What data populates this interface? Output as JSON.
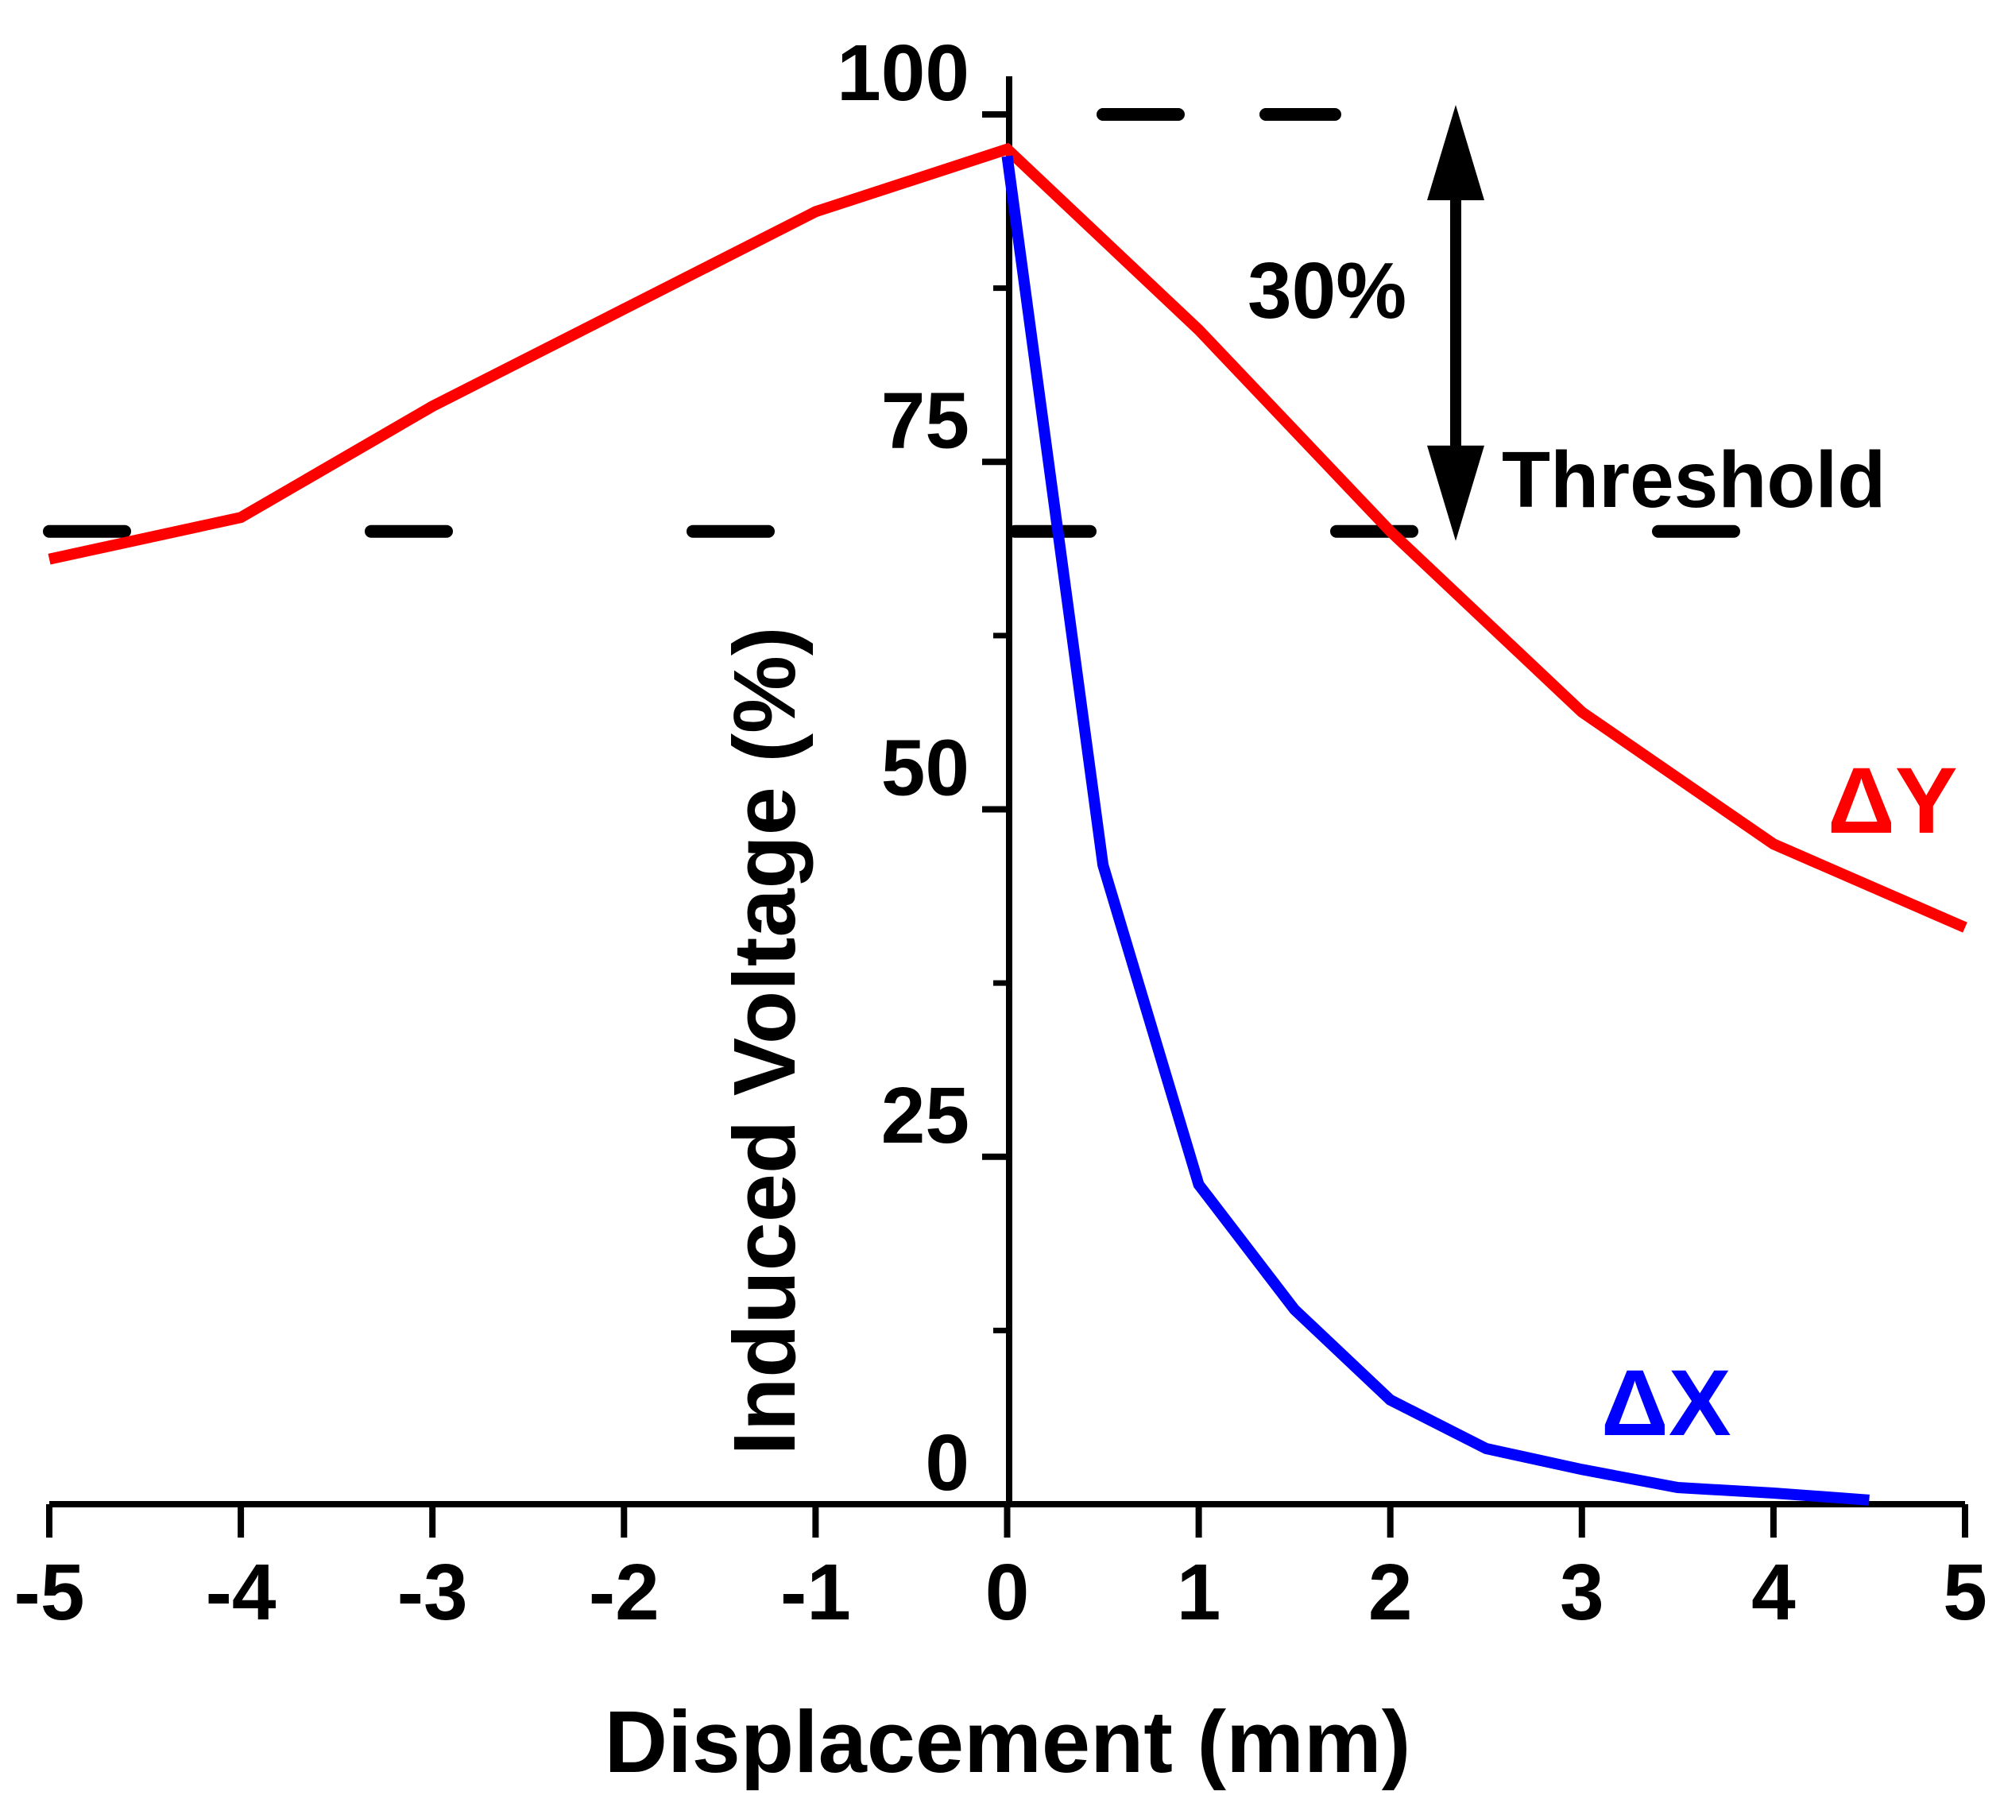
{
  "chart_data": {
    "type": "line",
    "title": "",
    "xlabel": "Displacement (mm)",
    "ylabel": "Induced Voltage (%)",
    "xlim": [
      -5,
      5
    ],
    "ylim": [
      0,
      100
    ],
    "x_ticks": [
      "-5",
      "-4",
      "-3",
      "-2",
      "-1",
      "0",
      "1",
      "2",
      "3",
      "4",
      "5"
    ],
    "x_tick_values": [
      -5,
      -4,
      -3,
      -2,
      -1,
      0,
      1,
      2,
      3,
      4,
      5
    ],
    "y_ticks": [
      "0",
      "25",
      "50",
      "75",
      "100"
    ],
    "y_tick_values": [
      0,
      25,
      50,
      75,
      100
    ],
    "y_minor_tick_values": [
      12.5,
      37.5,
      62.5,
      87.5
    ],
    "grid": false,
    "colors": {
      "dy": "#ff0000",
      "dx": "#0000ff",
      "axis": "#000000"
    },
    "series": [
      {
        "name": "ΔY",
        "color": "#ff0000",
        "x": [
          -5,
          -4,
          -3,
          -2,
          -1,
          0,
          1,
          2,
          3,
          4,
          5
        ],
        "y": [
          68,
          71,
          79,
          86,
          93,
          97.5,
          84.5,
          70,
          57,
          47.5,
          41.5
        ]
      },
      {
        "name": "ΔX",
        "color": "#0000ff",
        "x": [
          0,
          0.5,
          1,
          1.5,
          2,
          2.5,
          3,
          3.5,
          4,
          4.5
        ],
        "y": [
          97,
          46,
          23,
          14,
          7.5,
          4,
          2.5,
          1.2,
          0.8,
          0.3
        ]
      }
    ],
    "annotations": {
      "threshold_label": "Threshold",
      "threshold_value": 70,
      "reference_value": 100,
      "difference_label": "30%"
    }
  }
}
